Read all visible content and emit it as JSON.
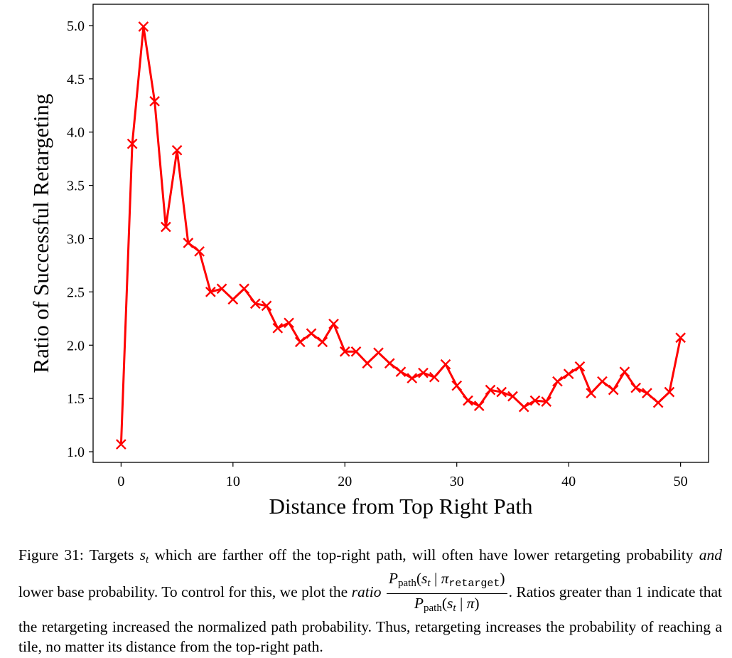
{
  "chart_data": {
    "type": "line",
    "title": "",
    "xlabel": "Distance from Top Right Path",
    "ylabel": "Ratio of Successful Retargeting",
    "xlim": [
      -2.5,
      52.5
    ],
    "ylim": [
      0.9,
      5.2
    ],
    "xticks": [
      0,
      10,
      20,
      30,
      40,
      50
    ],
    "xtick_labels": [
      "0",
      "10",
      "20",
      "30",
      "40",
      "50"
    ],
    "yticks": [
      1.0,
      1.5,
      2.0,
      2.5,
      3.0,
      3.5,
      4.0,
      4.5,
      5.0
    ],
    "ytick_labels": [
      "1.0",
      "1.5",
      "2.0",
      "2.5",
      "3.0",
      "3.5",
      "4.0",
      "4.5",
      "5.0"
    ],
    "grid": false,
    "legend": "none",
    "series": [
      {
        "name": "ratio",
        "color": "#ff0000",
        "marker": "x",
        "x": [
          0,
          1,
          2,
          3,
          4,
          5,
          6,
          7,
          8,
          9,
          10,
          11,
          12,
          13,
          14,
          15,
          16,
          17,
          18,
          19,
          20,
          21,
          22,
          23,
          24,
          25,
          26,
          27,
          28,
          29,
          30,
          31,
          32,
          33,
          34,
          35,
          36,
          37,
          38,
          39,
          40,
          41,
          42,
          43,
          44,
          45,
          46,
          47,
          48,
          49,
          50
        ],
        "y": [
          1.07,
          3.89,
          4.99,
          4.29,
          3.11,
          3.83,
          2.96,
          2.88,
          2.5,
          2.53,
          2.43,
          2.53,
          2.39,
          2.37,
          2.16,
          2.21,
          2.03,
          2.11,
          2.03,
          2.2,
          1.94,
          1.94,
          1.83,
          1.93,
          1.83,
          1.75,
          1.69,
          1.74,
          1.7,
          1.82,
          1.62,
          1.48,
          1.43,
          1.58,
          1.56,
          1.52,
          1.42,
          1.48,
          1.47,
          1.66,
          1.73,
          1.8,
          1.55,
          1.66,
          1.58,
          1.75,
          1.6,
          1.55,
          1.46,
          1.56,
          2.07
        ]
      }
    ]
  },
  "caption": {
    "figure_label": "Figure 31:",
    "part1": "Targets",
    "var_s": "s",
    "var_t": "t",
    "part2": "which are farther off the top-right path, will often have lower retargeting probability",
    "and_word": "and",
    "part3": "lower base probability. To control for this, we plot the",
    "ratio_word": "ratio",
    "frac_P": "P",
    "frac_path": "path",
    "frac_bar": "|",
    "frac_pi": "π",
    "frac_retarget": "retarget",
    "period": ".",
    "part4": "Ratios greater than 1 indicate that the retargeting increased the normalized path probability. Thus, retargeting increases the probability of reaching a tile, no matter its distance from the top-right path."
  }
}
